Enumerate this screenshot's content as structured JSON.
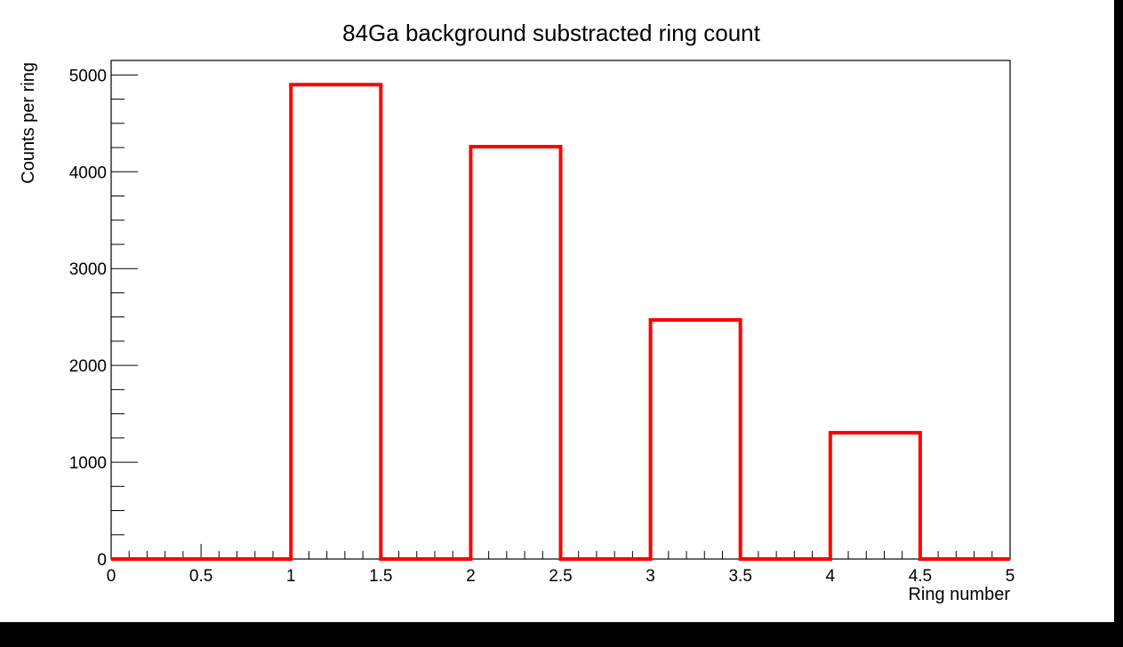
{
  "colors": {
    "background": "#000000",
    "canvas": "#ffffff",
    "frame": "#000000",
    "series_line": "#ff0000"
  },
  "chart_data": {
    "type": "bar",
    "style": "step-histogram",
    "title": "84Ga background substracted ring count",
    "xlabel": "Ring number",
    "ylabel": "Counts per ring",
    "xlim": [
      0,
      5
    ],
    "ylim": [
      0,
      5150
    ],
    "grid": false,
    "bin_edges": [
      0,
      0.5,
      1,
      1.5,
      2,
      2.5,
      3,
      3.5,
      4,
      4.5,
      5
    ],
    "values": [
      0,
      0,
      4900,
      0,
      4260,
      0,
      2470,
      0,
      1305,
      0
    ],
    "x_ticks": [
      {
        "value": 0,
        "label": "0"
      },
      {
        "value": 0.5,
        "label": "0.5"
      },
      {
        "value": 1,
        "label": "1"
      },
      {
        "value": 1.5,
        "label": "1.5"
      },
      {
        "value": 2,
        "label": "2"
      },
      {
        "value": 2.5,
        "label": "2.5"
      },
      {
        "value": 3,
        "label": "3"
      },
      {
        "value": 3.5,
        "label": "3.5"
      },
      {
        "value": 4,
        "label": "4"
      },
      {
        "value": 4.5,
        "label": "4.5"
      },
      {
        "value": 5,
        "label": "5"
      }
    ],
    "y_ticks": [
      {
        "value": 0,
        "label": "0"
      },
      {
        "value": 1000,
        "label": "1000"
      },
      {
        "value": 2000,
        "label": "2000"
      },
      {
        "value": 3000,
        "label": "3000"
      },
      {
        "value": 4000,
        "label": "4000"
      },
      {
        "value": 5000,
        "label": "5000"
      }
    ],
    "x_minor_step": 0.1,
    "y_minor_step": 250
  }
}
